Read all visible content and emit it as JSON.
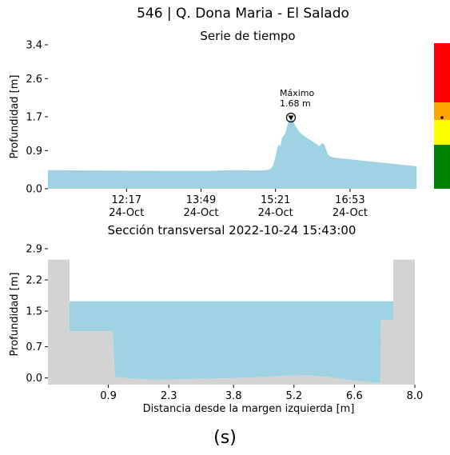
{
  "figure": {
    "title": "546 | Q. Dona Maria - El Salado",
    "caption": "(s)"
  },
  "colors": {
    "water": "#9ed1e1",
    "terrain": "#d3d3d3",
    "scale_levels": [
      "#008000",
      "#ffff00",
      "#ffa500",
      "#ff0000"
    ]
  },
  "chart_data": [
    {
      "type": "area",
      "title": "Serie de tiempo",
      "ylabel": "Profundidad [m]",
      "xlabel": "",
      "yticks": [
        "0.0",
        "0.9",
        "1.7",
        "2.6",
        "3.4"
      ],
      "ylim": [
        0,
        3.4
      ],
      "xticks": [
        {
          "time": "12:17",
          "date": "24-Oct"
        },
        {
          "time": "13:49",
          "date": "24-Oct"
        },
        {
          "time": "15:21",
          "date": "24-Oct"
        },
        {
          "time": "16:53",
          "date": "24-Oct"
        }
      ],
      "xlim_minutes": [
        640,
        1095
      ],
      "xtick_minutes": [
        737,
        829,
        921,
        1013
      ],
      "series": [
        {
          "points_minutes_depth": [
            [
              640,
              0.44
            ],
            [
              700,
              0.43
            ],
            [
              780,
              0.42
            ],
            [
              840,
              0.42
            ],
            [
              850,
              0.43
            ],
            [
              870,
              0.44
            ],
            [
              900,
              0.43
            ],
            [
              910,
              0.44
            ],
            [
              915,
              0.47
            ],
            [
              918,
              0.55
            ],
            [
              921,
              0.75
            ],
            [
              923,
              0.95
            ],
            [
              925,
              1.05
            ],
            [
              927,
              1.0
            ],
            [
              929,
              1.2
            ],
            [
              931,
              1.25
            ],
            [
              933,
              1.3
            ],
            [
              935,
              1.45
            ],
            [
              937,
              1.58
            ],
            [
              939,
              1.62
            ],
            [
              941,
              1.68
            ],
            [
              943,
              1.6
            ],
            [
              945,
              1.5
            ],
            [
              947,
              1.45
            ],
            [
              950,
              1.35
            ],
            [
              953,
              1.3
            ],
            [
              956,
              1.25
            ],
            [
              960,
              1.2
            ],
            [
              964,
              1.15
            ],
            [
              968,
              1.1
            ],
            [
              972,
              1.05
            ],
            [
              975,
              1.0
            ],
            [
              977,
              1.05
            ],
            [
              979,
              1.08
            ],
            [
              981,
              1.05
            ],
            [
              983,
              0.95
            ],
            [
              986,
              0.8
            ],
            [
              990,
              0.75
            ],
            [
              995,
              0.73
            ],
            [
              1000,
              0.72
            ],
            [
              1010,
              0.7
            ],
            [
              1020,
              0.68
            ],
            [
              1030,
              0.66
            ],
            [
              1040,
              0.64
            ],
            [
              1050,
              0.62
            ],
            [
              1060,
              0.6
            ],
            [
              1070,
              0.58
            ],
            [
              1080,
              0.56
            ],
            [
              1090,
              0.54
            ],
            [
              1095,
              0.53
            ]
          ]
        }
      ],
      "annotation": {
        "label": "Máximo",
        "value_text": "1.68 m",
        "x_minutes": 941,
        "y": 1.68
      },
      "risk_scale": {
        "marker_value": 1.68
      }
    },
    {
      "type": "area",
      "title": "Sección transversal 2022-10-24 15:43:00",
      "ylabel": "Profundidad [m]",
      "xlabel": "Distancia desde la margen izquierda [m]",
      "yticks": [
        "0.0",
        "0.7",
        "1.5",
        "2.2",
        "2.9"
      ],
      "ylim": [
        -0.15,
        2.9
      ],
      "xticks": [
        "0.9",
        "2.3",
        "3.8",
        "5.2",
        "6.6",
        "8.0"
      ],
      "xlim": [
        -0.5,
        8.0
      ],
      "water_level": 1.72,
      "terrain_profile": [
        [
          -0.5,
          2.65
        ],
        [
          0.0,
          2.65
        ],
        [
          0.0,
          1.05
        ],
        [
          1.0,
          1.05
        ],
        [
          1.05,
          0.02
        ],
        [
          1.5,
          -0.02
        ],
        [
          2.0,
          -0.04
        ],
        [
          3.0,
          -0.02
        ],
        [
          4.0,
          0.0
        ],
        [
          4.5,
          0.02
        ],
        [
          5.0,
          0.05
        ],
        [
          5.5,
          0.06
        ],
        [
          6.0,
          0.02
        ],
        [
          6.5,
          -0.05
        ],
        [
          7.2,
          -0.12
        ],
        [
          7.22,
          1.3
        ],
        [
          7.5,
          1.3
        ],
        [
          7.5,
          2.65
        ],
        [
          8.0,
          2.65
        ]
      ]
    }
  ]
}
